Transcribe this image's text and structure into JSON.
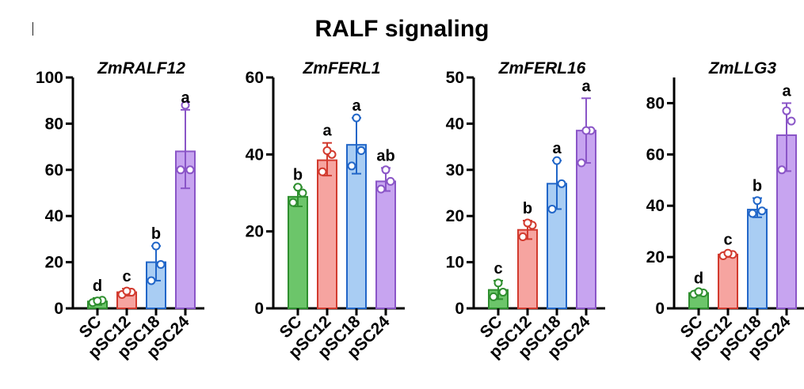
{
  "title": "RALF signaling",
  "colors": {
    "SC": {
      "fill": "#6cc56a",
      "stroke": "#2f8f2f"
    },
    "pSC12": {
      "fill": "#f6a4a0",
      "stroke": "#d23a2e"
    },
    "pSC18": {
      "fill": "#a9cdf3",
      "stroke": "#2166c8"
    },
    "pSC24": {
      "fill": "#c7a4f0",
      "stroke": "#8a55c7"
    }
  },
  "chart_data": [
    {
      "type": "bar",
      "title": "ZmRALF12",
      "categories": [
        "SC",
        "pSC12",
        "pSC18",
        "pSC24"
      ],
      "values": [
        3,
        7,
        20,
        68
      ],
      "error": [
        [
          1.5,
          4.5
        ],
        [
          5.5,
          8.5
        ],
        [
          12,
          27
        ],
        [
          52,
          86
        ]
      ],
      "points": [
        [
          2.5,
          3.5,
          3.2
        ],
        [
          6,
          7,
          7.5
        ],
        [
          12,
          19,
          27
        ],
        [
          60,
          60,
          88
        ]
      ],
      "letters": [
        "d",
        "c",
        "b",
        "a"
      ],
      "ylim": [
        0,
        100
      ],
      "yticks": [
        0,
        20,
        40,
        60,
        80,
        100
      ],
      "grid": false
    },
    {
      "type": "bar",
      "title": "ZmFERL1",
      "categories": [
        "SC",
        "pSC12",
        "pSC18",
        "pSC24"
      ],
      "values": [
        29,
        38.5,
        42.5,
        33
      ],
      "error": [
        [
          26.5,
          31.5
        ],
        [
          34.5,
          43
        ],
        [
          35,
          49.5
        ],
        [
          30.5,
          36.5
        ]
      ],
      "points": [
        [
          27.5,
          30,
          31.5
        ],
        [
          35.5,
          40,
          41
        ],
        [
          37,
          41,
          49.5
        ],
        [
          31,
          33,
          36
        ]
      ],
      "letters": [
        "b",
        "a",
        "a",
        "ab"
      ],
      "ylim": [
        0,
        60
      ],
      "yticks": [
        0,
        20,
        40,
        60
      ],
      "grid": false
    },
    {
      "type": "bar",
      "title": "ZmFERL16",
      "categories": [
        "SC",
        "pSC12",
        "pSC18",
        "pSC24"
      ],
      "values": [
        4,
        17,
        27,
        38.5
      ],
      "error": [
        [
          2,
          6
        ],
        [
          15,
          19
        ],
        [
          21.5,
          32
        ],
        [
          31.5,
          45.5
        ]
      ],
      "points": [
        [
          2.5,
          3.5,
          5.5
        ],
        [
          15.5,
          18,
          18.5
        ],
        [
          21.5,
          27,
          32
        ],
        [
          31.5,
          38.5,
          38.5
        ]
      ],
      "letters": [
        "c",
        "b",
        "a",
        "a"
      ],
      "ylim": [
        0,
        50
      ],
      "yticks": [
        0,
        10,
        20,
        30,
        40,
        50
      ],
      "grid": false
    },
    {
      "type": "bar",
      "title": "ZmLLG3",
      "categories": [
        "SC",
        "pSC12",
        "pSC18",
        "pSC24"
      ],
      "values": [
        6,
        21,
        38.5,
        67.5
      ],
      "error": [
        [
          5,
          7
        ],
        [
          20,
          22
        ],
        [
          35.5,
          43
        ],
        [
          53.5,
          80
        ]
      ],
      "points": [
        [
          5.5,
          6,
          6.5
        ],
        [
          20.5,
          21,
          21.5
        ],
        [
          37,
          38,
          42
        ],
        [
          54,
          73,
          77
        ]
      ],
      "letters": [
        "d",
        "c",
        "b",
        "a"
      ],
      "ylim": [
        0,
        90
      ],
      "yticks": [
        0,
        20,
        40,
        60,
        80
      ],
      "grid": false
    }
  ]
}
